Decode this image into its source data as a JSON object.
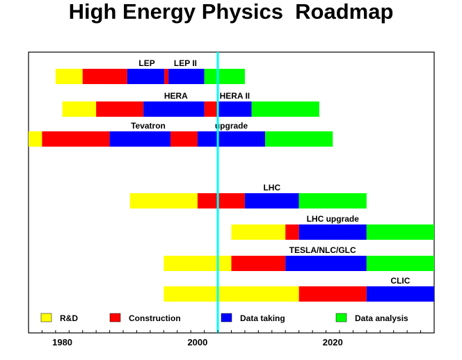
{
  "chart_data": {
    "type": "gantt",
    "title": "High Energy Physics  Roadmap",
    "xlim": [
      1975,
      2035
    ],
    "x_ticks": [
      1980,
      2000,
      2020
    ],
    "marker_year": 2003,
    "colors": {
      "rd": "#ffff00",
      "construction": "#ff0000",
      "data_taking": "#0000ff",
      "data_analysis": "#00ff00",
      "marker": "#00ffff"
    },
    "projects": [
      {
        "segments": [
          {
            "phase": "rd",
            "start": 1979,
            "end": 1983
          },
          {
            "phase": "construction",
            "start": 1983,
            "end": 1989.6
          },
          {
            "phase": "data_taking",
            "start": 1989.6,
            "end": 1995.1
          },
          {
            "phase": "construction",
            "start": 1995.1,
            "end": 1995.7
          },
          {
            "phase": "data_taking",
            "start": 1995.7,
            "end": 2001
          },
          {
            "phase": "data_analysis",
            "start": 2001,
            "end": 2007
          }
        ],
        "labels": [
          {
            "text": "LEP",
            "x": 1992.5
          },
          {
            "text": "LEP II",
            "x": 1998.2
          }
        ]
      },
      {
        "segments": [
          {
            "phase": "rd",
            "start": 1980,
            "end": 1985
          },
          {
            "phase": "construction",
            "start": 1985,
            "end": 1992
          },
          {
            "phase": "data_taking",
            "start": 1992,
            "end": 2001
          },
          {
            "phase": "construction",
            "start": 2001,
            "end": 2003
          },
          {
            "phase": "data_taking",
            "start": 2003,
            "end": 2008
          },
          {
            "phase": "data_analysis",
            "start": 2008,
            "end": 2018
          }
        ],
        "labels": [
          {
            "text": "HERA",
            "x": 1996.8
          },
          {
            "text": "HERA II",
            "x": 2005.5
          }
        ]
      },
      {
        "segments": [
          {
            "phase": "rd",
            "start": 1975,
            "end": 1977
          },
          {
            "phase": "construction",
            "start": 1977,
            "end": 1987
          },
          {
            "phase": "data_taking",
            "start": 1987,
            "end": 1996
          },
          {
            "phase": "construction",
            "start": 1996,
            "end": 2000
          },
          {
            "phase": "data_taking",
            "start": 2000,
            "end": 2010
          },
          {
            "phase": "data_analysis",
            "start": 2010,
            "end": 2020
          }
        ],
        "labels": [
          {
            "text": "Tevatron",
            "x": 1992.7
          },
          {
            "text": "upgrade",
            "x": 2005
          }
        ]
      },
      {
        "segments": [
          {
            "phase": "rd",
            "start": 1990,
            "end": 2000
          },
          {
            "phase": "construction",
            "start": 2000,
            "end": 2007
          },
          {
            "phase": "data_taking",
            "start": 2007,
            "end": 2015
          },
          {
            "phase": "data_analysis",
            "start": 2015,
            "end": 2025
          }
        ],
        "labels": [
          {
            "text": "LHC",
            "x": 2011
          }
        ]
      },
      {
        "segments": [
          {
            "phase": "rd",
            "start": 2005,
            "end": 2013
          },
          {
            "phase": "construction",
            "start": 2013,
            "end": 2015
          },
          {
            "phase": "data_taking",
            "start": 2015,
            "end": 2025
          },
          {
            "phase": "data_analysis",
            "start": 2025,
            "end": 2035
          }
        ],
        "labels": [
          {
            "text": "LHC upgrade",
            "x": 2020
          }
        ]
      },
      {
        "segments": [
          {
            "phase": "rd",
            "start": 1995,
            "end": 2005
          },
          {
            "phase": "construction",
            "start": 2005,
            "end": 2013
          },
          {
            "phase": "data_taking",
            "start": 2013,
            "end": 2025
          },
          {
            "phase": "data_analysis",
            "start": 2025,
            "end": 2035
          }
        ],
        "labels": [
          {
            "text": "TESLA/NLC/GLC",
            "x": 2018.5
          }
        ]
      },
      {
        "segments": [
          {
            "phase": "rd",
            "start": 1995,
            "end": 2015
          },
          {
            "phase": "construction",
            "start": 2015,
            "end": 2025
          },
          {
            "phase": "data_taking",
            "start": 2025,
            "end": 2035
          }
        ],
        "labels": [
          {
            "text": "CLIC",
            "x": 2030
          }
        ]
      }
    ],
    "legend": [
      {
        "phase": "rd",
        "label": "R&D"
      },
      {
        "phase": "construction",
        "label": "Construction"
      },
      {
        "phase": "data_taking",
        "label": "Data taking"
      },
      {
        "phase": "data_analysis",
        "label": "Data analysis"
      }
    ],
    "legend_position": "bottom-inside"
  }
}
